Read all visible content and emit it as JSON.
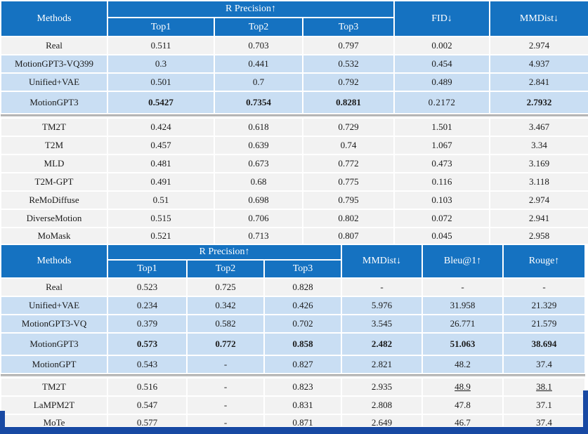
{
  "colors": {
    "header_blue": "#1572C1",
    "row_blue": "#C9DEF3",
    "row_gray": "#F2F2F2",
    "highlight_red": "#FB0000",
    "frame_navy": "#1849A3"
  },
  "tables": [
    {
      "name": "text-to-motion-benchmark",
      "header": {
        "methods": "Methods",
        "group": "R Precision↑",
        "subs": [
          "Top1",
          "Top2",
          "Top3"
        ],
        "extras": [
          "FID↓",
          "MMDist↓"
        ]
      },
      "rows": [
        {
          "method": "Real",
          "values": [
            "0.511",
            "0.703",
            "0.797",
            "0.002",
            "2.974"
          ],
          "style": "gray",
          "size": "n"
        },
        {
          "method": "MotionGPT3-VQ399",
          "values": [
            "0.3",
            "0.441",
            "0.532",
            "0.454",
            "4.937"
          ],
          "style": "blue",
          "size": "n"
        },
        {
          "method": "Unified+VAE",
          "values": [
            "0.501",
            "0.7",
            "0.792",
            "0.489",
            "2.841"
          ],
          "style": "blue",
          "size": "n"
        },
        {
          "method": "MotionGPT3",
          "values": [
            "0.5427",
            "0.7354",
            "0.8281",
            "0.2172",
            "2.7932"
          ],
          "style": "blue",
          "size": "t",
          "method_style": "big",
          "value_styles": [
            "red",
            "red",
            "red",
            "big",
            "red"
          ],
          "shadow_after": true
        },
        {
          "method": "TM2T",
          "values": [
            "0.424",
            "0.618",
            "0.729",
            "1.501",
            "3.467"
          ],
          "style": "gray",
          "size": "n"
        },
        {
          "method": "T2M",
          "values": [
            "0.457",
            "0.639",
            "0.74",
            "1.067",
            "3.34"
          ],
          "style": "gray",
          "size": "n"
        },
        {
          "method": "MLD",
          "values": [
            "0.481",
            "0.673",
            "0.772",
            "0.473",
            "3.169"
          ],
          "style": "gray",
          "size": "n"
        },
        {
          "method": "T2M-GPT",
          "values": [
            "0.491",
            "0.68",
            "0.775",
            "0.116",
            "3.118"
          ],
          "style": "gray",
          "size": "n"
        },
        {
          "method": "ReMoDiffuse",
          "values": [
            "0.51",
            "0.698",
            "0.795",
            "0.103",
            "2.974"
          ],
          "style": "gray",
          "size": "n"
        },
        {
          "method": "DiverseMotion",
          "values": [
            "0.515",
            "0.706",
            "0.802",
            "0.072",
            "2.941"
          ],
          "style": "gray",
          "size": "n"
        },
        {
          "method": "MoMask",
          "values": [
            "0.521",
            "0.713",
            "0.807",
            "0.045",
            "2.958"
          ],
          "style": "gray",
          "size": "s"
        }
      ]
    },
    {
      "name": "motion-to-text-benchmark",
      "header": {
        "methods": "Methods",
        "group": "R Precision↑",
        "subs": [
          "Top1",
          "Top2",
          "Top3"
        ],
        "extras": [
          "MMDist↓",
          "Bleu@1↑",
          "Rouge↑"
        ]
      },
      "rows": [
        {
          "method": "Real",
          "values": [
            "0.523",
            "0.725",
            "0.828",
            "-",
            "-",
            "-"
          ],
          "style": "gray",
          "size": "n"
        },
        {
          "method": "Unified+VAE",
          "values": [
            "0.234",
            "0.342",
            "0.426",
            "5.976",
            "31.958",
            "21.329"
          ],
          "style": "blue",
          "size": "n"
        },
        {
          "method": "MotionGPT3-VQ",
          "values": [
            "0.379",
            "0.582",
            "0.702",
            "3.545",
            "26.771",
            "21.579"
          ],
          "style": "blue",
          "size": "n"
        },
        {
          "method": "MotionGPT3",
          "values": [
            "0.573",
            "0.772",
            "0.858",
            "2.482",
            "51.063",
            "38.694"
          ],
          "style": "blue",
          "size": "t",
          "method_style": "big",
          "value_styles": [
            "red",
            "red",
            "red",
            "red",
            "red",
            "red"
          ]
        },
        {
          "method": "MotionGPT",
          "values": [
            "0.543",
            "-",
            "0.827",
            "2.821",
            "48.2",
            "37.4"
          ],
          "style": "blue",
          "size": "n",
          "shadow_after": true
        },
        {
          "method": "TM2T",
          "values": [
            "0.516",
            "-",
            "0.823",
            "2.935",
            "48.9",
            "38.1"
          ],
          "style": "gray",
          "size": "n",
          "value_styles": [
            "",
            "",
            "",
            "",
            "u",
            "u"
          ]
        },
        {
          "method": "LaMPM2T",
          "values": [
            "0.547",
            "-",
            "0.831",
            "2.808",
            "47.8",
            "37.1"
          ],
          "style": "gray",
          "size": "n"
        },
        {
          "method": "MoTe",
          "values": [
            "0.577",
            "-",
            "0.871",
            "2.649",
            "46.7",
            "37.4"
          ],
          "style": "gray",
          "size": "s",
          "value_styles": [
            "",
            "",
            "",
            "u",
            "",
            ""
          ]
        }
      ]
    }
  ]
}
